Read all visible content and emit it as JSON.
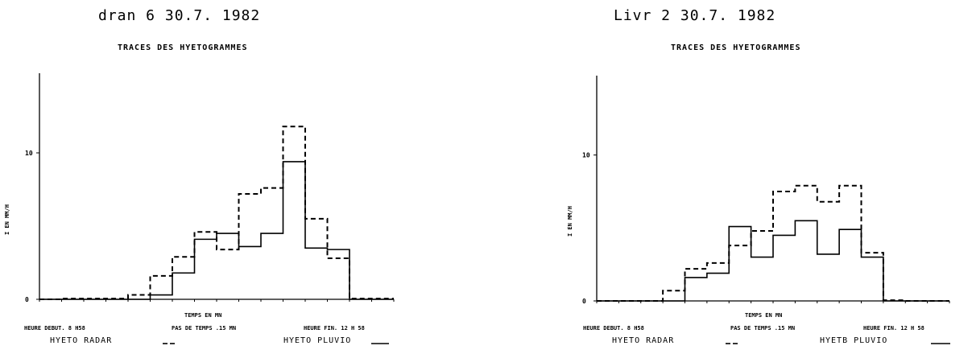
{
  "chart_data": [
    {
      "type": "line",
      "step": true,
      "title": "dran 6  30.7. 1982",
      "subtitle": "TRACES  DES   HYETOGRAMMES",
      "xlabel": "TEMPS EN MN",
      "ylabel": "I EN MM/H",
      "ylim": [
        0,
        15
      ],
      "yticks": [
        "0",
        "10"
      ],
      "footer": {
        "start": "HEURE DEBUT. 8  H58",
        "step": "PAS DE TEMPS .15 MN",
        "end": "HEURE FIN.  12 H 58",
        "legend_radar": "HYETO   RADAR",
        "legend_pluvio": "HYETO   PLUVIO"
      },
      "x": [
        0,
        1,
        2,
        3,
        4,
        5,
        6,
        7,
        8,
        9,
        10,
        11,
        12,
        13,
        14,
        15
      ],
      "series": [
        {
          "name": "HYETO RADAR",
          "style": "dashed",
          "values": [
            0,
            0.05,
            0.05,
            0.05,
            0.3,
            1.6,
            2.9,
            4.6,
            3.4,
            7.2,
            7.6,
            11.8,
            5.5,
            2.8,
            0.05,
            0.05
          ]
        },
        {
          "name": "HYETO PLUVIO",
          "style": "solid",
          "values": [
            0,
            0,
            0,
            0,
            0,
            0.3,
            1.8,
            4.1,
            4.5,
            3.6,
            4.5,
            9.4,
            3.5,
            3.4,
            0,
            0
          ]
        }
      ]
    },
    {
      "type": "line",
      "step": true,
      "title": "Livr 2  30.7. 1982",
      "subtitle": "TRACES  DES   HYETOGRAMMES",
      "xlabel": "TEMPS EN MN",
      "ylabel": "I EN MM/H",
      "ylim": [
        0,
        15
      ],
      "yticks": [
        "0",
        "10"
      ],
      "footer": {
        "start": "HEURE DEBUT. 8  H58",
        "step": "PAS DE TEMPS .15 MN",
        "end": "HEURE FIN.  12 H 58",
        "legend_radar": "HYETO   RADAR",
        "legend_pluvio": "HYETB   PLUVIO"
      },
      "x": [
        0,
        1,
        2,
        3,
        4,
        5,
        6,
        7,
        8,
        9,
        10,
        11,
        12,
        13,
        14,
        15
      ],
      "series": [
        {
          "name": "HYETO RADAR",
          "style": "dashed",
          "values": [
            0,
            0,
            0,
            0.7,
            2.2,
            2.6,
            3.8,
            4.8,
            7.5,
            7.9,
            6.8,
            7.9,
            3.3,
            0.05,
            0,
            0
          ]
        },
        {
          "name": "HYETO PLUVIO",
          "style": "solid",
          "values": [
            0,
            0,
            0,
            0,
            1.6,
            1.9,
            5.1,
            3.0,
            4.5,
            5.5,
            3.2,
            4.9,
            3.0,
            0,
            0,
            0
          ]
        }
      ]
    }
  ]
}
